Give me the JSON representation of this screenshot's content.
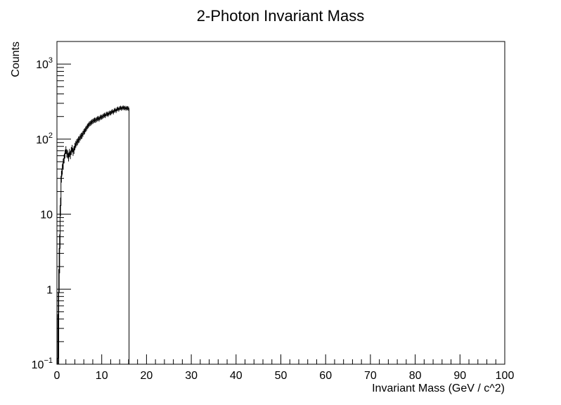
{
  "chart_data": {
    "type": "histogram",
    "title": "2-Photon Invariant Mass",
    "xlabel": "Invariant Mass (GeV / c^2)",
    "ylabel": "Counts",
    "xlim": [
      0,
      100
    ],
    "ylim": [
      0.1,
      2000
    ],
    "yscale": "log",
    "grid": false,
    "legend": "none",
    "x_ticks": [
      {
        "value": 0,
        "label": "0"
      },
      {
        "value": 10,
        "label": "10"
      },
      {
        "value": 20,
        "label": "20"
      },
      {
        "value": 30,
        "label": "30"
      },
      {
        "value": 40,
        "label": "40"
      },
      {
        "value": 50,
        "label": "50"
      },
      {
        "value": 60,
        "label": "60"
      },
      {
        "value": 70,
        "label": "70"
      },
      {
        "value": 80,
        "label": "80"
      },
      {
        "value": 90,
        "label": "90"
      },
      {
        "value": 100,
        "label": "100"
      }
    ],
    "y_ticks": [
      {
        "value": 0.1,
        "base": "10",
        "exp": "−1"
      },
      {
        "value": 1,
        "base": "1",
        "exp": ""
      },
      {
        "value": 10,
        "base": "10",
        "exp": ""
      },
      {
        "value": 100,
        "base": "10",
        "exp": "2"
      },
      {
        "value": 1000,
        "base": "10",
        "exp": "3"
      }
    ],
    "bin_width": 0.2,
    "bins": [
      [
        0.2,
        0.12
      ],
      [
        0.4,
        0.9
      ],
      [
        0.6,
        3.5
      ],
      [
        0.8,
        13
      ],
      [
        1.0,
        32
      ],
      [
        1.2,
        40
      ],
      [
        1.4,
        48
      ],
      [
        1.6,
        55
      ],
      [
        1.8,
        64
      ],
      [
        2.0,
        72
      ],
      [
        2.2,
        65
      ],
      [
        2.4,
        63
      ],
      [
        2.6,
        58
      ],
      [
        2.8,
        66
      ],
      [
        3.0,
        62
      ],
      [
        3.2,
        70
      ],
      [
        3.4,
        75
      ],
      [
        3.6,
        68
      ],
      [
        3.8,
        72
      ],
      [
        4.0,
        80
      ],
      [
        4.2,
        85
      ],
      [
        4.4,
        90
      ],
      [
        4.6,
        93
      ],
      [
        4.8,
        98
      ],
      [
        5.0,
        100
      ],
      [
        5.2,
        106
      ],
      [
        5.4,
        110
      ],
      [
        5.6,
        112
      ],
      [
        5.8,
        118
      ],
      [
        6.0,
        125
      ],
      [
        6.2,
        128
      ],
      [
        6.4,
        135
      ],
      [
        6.6,
        140
      ],
      [
        6.8,
        148
      ],
      [
        7.0,
        152
      ],
      [
        7.2,
        158
      ],
      [
        7.4,
        162
      ],
      [
        7.6,
        165
      ],
      [
        7.8,
        170
      ],
      [
        8.0,
        172
      ],
      [
        8.2,
        176
      ],
      [
        8.4,
        180
      ],
      [
        8.6,
        178
      ],
      [
        8.8,
        182
      ],
      [
        9.0,
        186
      ],
      [
        9.2,
        190
      ],
      [
        9.4,
        185
      ],
      [
        9.6,
        192
      ],
      [
        9.8,
        198
      ],
      [
        10.0,
        195
      ],
      [
        10.2,
        200
      ],
      [
        10.4,
        205
      ],
      [
        10.6,
        210
      ],
      [
        10.8,
        205
      ],
      [
        11.0,
        215
      ],
      [
        11.2,
        218
      ],
      [
        11.4,
        212
      ],
      [
        11.6,
        220
      ],
      [
        11.8,
        225
      ],
      [
        12.0,
        222
      ],
      [
        12.2,
        230
      ],
      [
        12.4,
        235
      ],
      [
        12.6,
        228
      ],
      [
        12.8,
        240
      ],
      [
        13.0,
        245
      ],
      [
        13.2,
        238
      ],
      [
        13.4,
        250
      ],
      [
        13.6,
        255
      ],
      [
        13.8,
        248
      ],
      [
        14.0,
        258
      ],
      [
        14.2,
        262
      ],
      [
        14.4,
        255
      ],
      [
        14.6,
        260
      ],
      [
        14.8,
        265
      ],
      [
        15.0,
        258
      ],
      [
        15.2,
        262
      ],
      [
        15.4,
        255
      ],
      [
        15.6,
        260
      ],
      [
        15.8,
        258
      ],
      [
        16.0,
        255
      ]
    ],
    "line_color": "#000000"
  }
}
